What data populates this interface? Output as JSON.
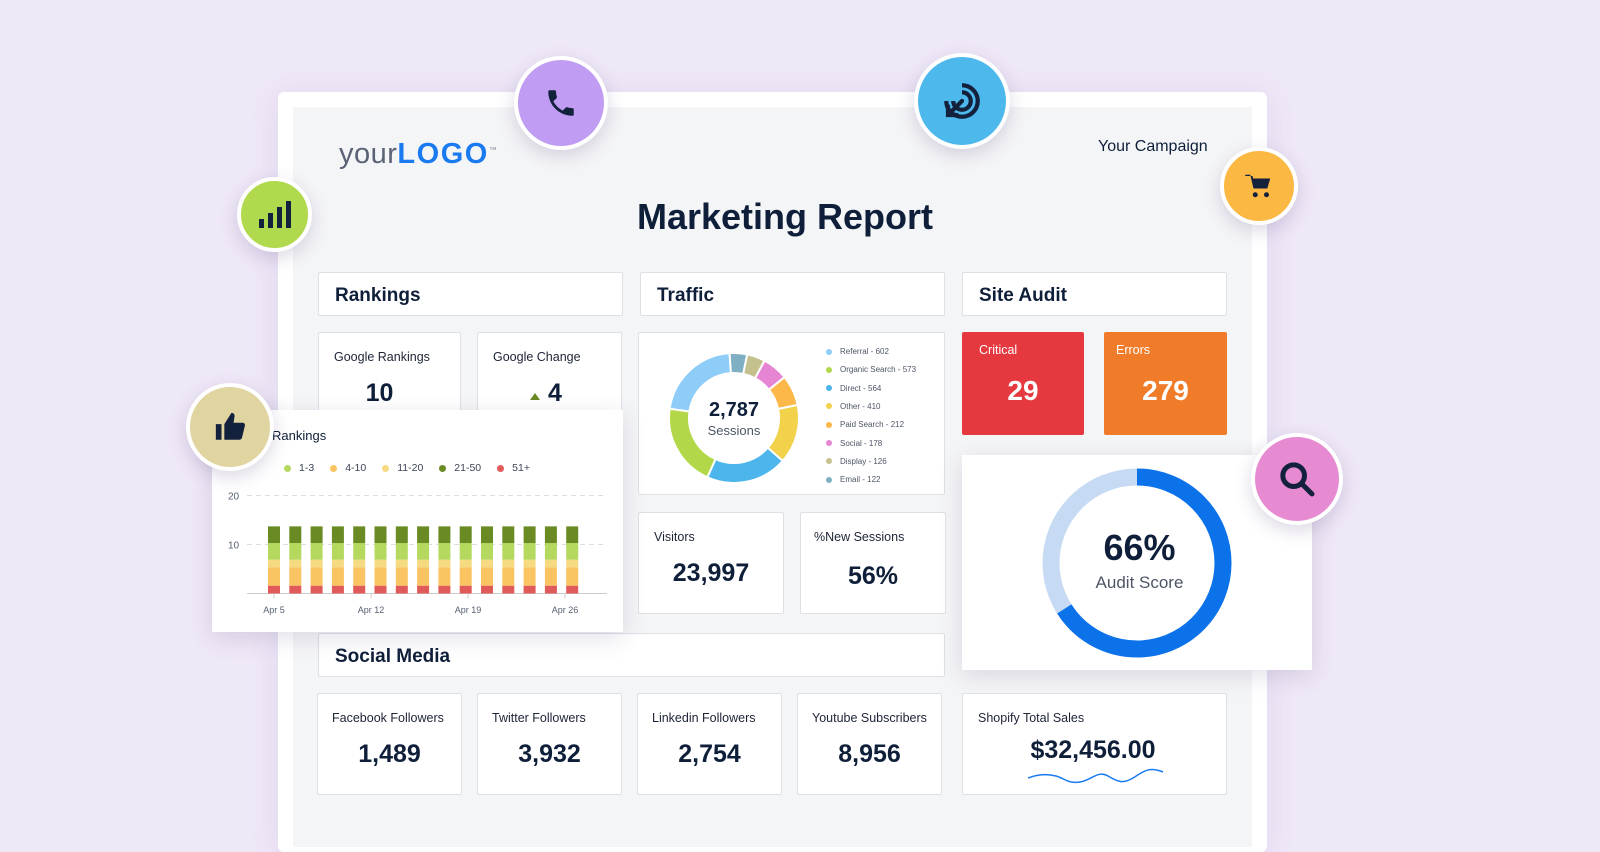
{
  "logo": {
    "text_your": "your",
    "text_logo": "LOGO",
    "tm": "™"
  },
  "campaign": "Your Campaign",
  "title": "Marketing Report",
  "sections": {
    "rankings": "Rankings",
    "traffic": "Traffic",
    "site_audit": "Site Audit",
    "social_media": "Social Media"
  },
  "rankings": {
    "google_rankings": {
      "label": "Google Rankings",
      "value": "10"
    },
    "google_change": {
      "label": "Google Change",
      "value": "4"
    }
  },
  "traffic": {
    "center_value": "2,787",
    "center_label": "Sessions",
    "legend": [
      {
        "label": "Referral - 602",
        "value": 602,
        "color": "#8ecdf8"
      },
      {
        "label": "Organic Search - 573",
        "value": 573,
        "color": "#b2d849"
      },
      {
        "label": "Direct - 564",
        "value": 564,
        "color": "#4cb6ec"
      },
      {
        "label": "Other - 410",
        "value": 410,
        "color": "#f2d24a"
      },
      {
        "label": "Paid Search - 212",
        "value": 212,
        "color": "#fdb84a"
      },
      {
        "label": "Social - 178",
        "value": 178,
        "color": "#e585d4"
      },
      {
        "label": "Display - 126",
        "value": 126,
        "color": "#c4c18f"
      },
      {
        "label": "Email - 122",
        "value": 122,
        "color": "#80afc4"
      }
    ],
    "visitors": {
      "label": "Visitors",
      "value": "23,997"
    },
    "new_sessions": {
      "label": "%New Sessions",
      "value": "56%"
    }
  },
  "site_audit": {
    "critical": {
      "label": "Critical",
      "value": "29",
      "color": "#e5383f"
    },
    "errors": {
      "label": "Errors",
      "value": "279",
      "color": "#f07c2a"
    },
    "score": {
      "value": "66%",
      "label": "Audit Score",
      "percent": 66
    }
  },
  "social": [
    {
      "label": "Facebook Followers",
      "value": "1,489"
    },
    {
      "label": "Twitter Followers",
      "value": "3,932"
    },
    {
      "label": "Linkedin Followers",
      "value": "2,754"
    },
    {
      "label": "Youtube Subscribers",
      "value": "8,956"
    }
  ],
  "shopify": {
    "label": "Shopify Total Sales",
    "value": "$32,456.00"
  },
  "chart_data": {
    "type": "bar",
    "stacked": true,
    "title": "Rankings",
    "ylim": [
      0,
      20
    ],
    "yticks": [
      10,
      20
    ],
    "grid": true,
    "legend": "top",
    "xticks": [
      "Apr 5",
      "Apr 12",
      "Apr 19",
      "Apr 26"
    ],
    "series": [
      {
        "name": "51+",
        "color": "#e05a5a",
        "values": [
          1.6,
          1.6,
          1.6,
          1.6,
          1.6,
          1.6,
          1.6,
          1.6,
          1.6,
          1.6,
          1.6,
          1.6,
          1.6,
          1.6,
          1.6
        ]
      },
      {
        "name": "4-10",
        "color": "#fbc462",
        "values": [
          3.7,
          3.7,
          3.7,
          3.7,
          3.7,
          3.7,
          3.7,
          3.7,
          3.7,
          3.7,
          3.7,
          3.7,
          3.7,
          3.7,
          3.7
        ]
      },
      {
        "name": "11-20",
        "color": "#f6da82",
        "values": [
          1.6,
          1.6,
          1.6,
          1.6,
          1.6,
          1.6,
          1.6,
          1.6,
          1.6,
          1.6,
          1.6,
          1.6,
          1.6,
          1.6,
          1.6
        ]
      },
      {
        "name": "1-3",
        "color": "#b5d85e",
        "values": [
          3.4,
          3.4,
          3.4,
          3.4,
          3.4,
          3.4,
          3.4,
          3.4,
          3.4,
          3.4,
          3.4,
          3.4,
          3.4,
          3.4,
          3.4
        ]
      },
      {
        "name": "21-50",
        "color": "#6a8a23",
        "values": [
          3.4,
          3.4,
          3.4,
          3.4,
          3.4,
          3.4,
          3.4,
          3.4,
          3.4,
          3.4,
          3.4,
          3.4,
          3.4,
          3.4,
          3.4
        ]
      }
    ],
    "legend_order": [
      "1-3",
      "4-10",
      "11-20",
      "21-50",
      "51+"
    ]
  },
  "floating_icons": [
    {
      "name": "phone-icon",
      "color": "#c09cf2"
    },
    {
      "name": "target-icon",
      "color": "#4db8ec"
    },
    {
      "name": "bar-chart-icon",
      "color": "#b1d94d"
    },
    {
      "name": "cart-icon",
      "color": "#fbb843"
    },
    {
      "name": "thumbs-up-icon",
      "color": "#e0d4a0"
    },
    {
      "name": "search-icon",
      "color": "#e68bd1"
    }
  ]
}
